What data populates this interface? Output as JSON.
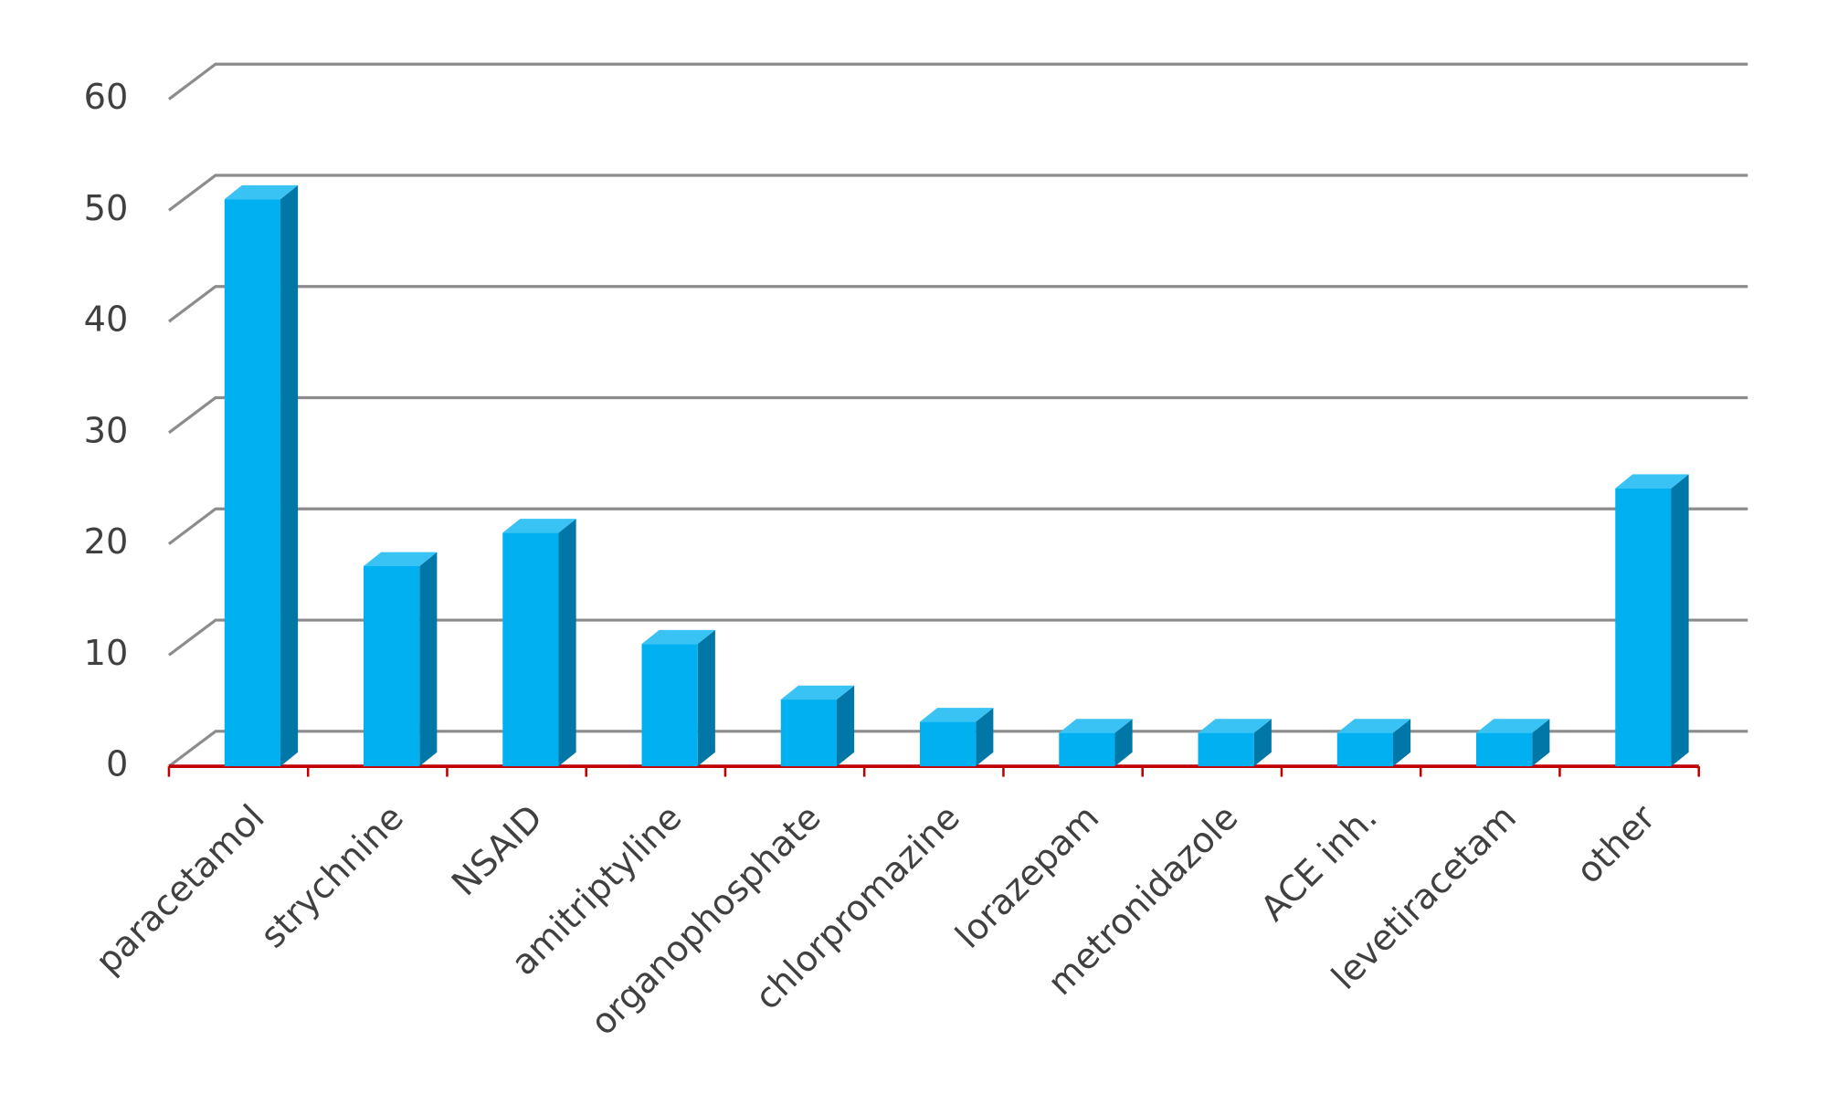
{
  "chart_data": {
    "type": "bar",
    "categories": [
      "paracetamol",
      "strychnine",
      "NSAID",
      "amitriptyline",
      "organophosphate",
      "chlorpromazine",
      "lorazepam",
      "metronidazole",
      "ACE inh.",
      "levetiracetam",
      "other"
    ],
    "values": [
      51,
      18,
      21,
      11,
      6,
      4,
      3,
      3,
      3,
      3,
      25
    ],
    "color": "#00b0f0",
    "ylim": [
      0,
      60
    ],
    "yticks": [
      0,
      10,
      20,
      30,
      40,
      50,
      60
    ],
    "grid": true
  }
}
